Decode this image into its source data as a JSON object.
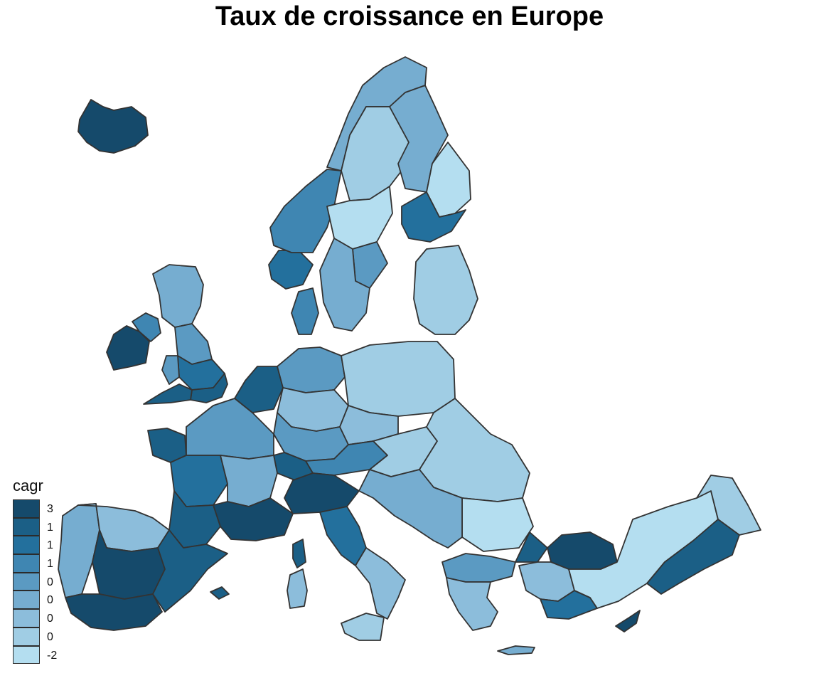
{
  "title": "Taux de croissance en Europe",
  "legend": {
    "title": "cagr",
    "items": [
      {
        "label": "3",
        "color": "#154a6b"
      },
      {
        "label": "1",
        "color": "#1b5f86"
      },
      {
        "label": "1",
        "color": "#23709d"
      },
      {
        "label": "1",
        "color": "#3f86b2"
      },
      {
        "label": "0",
        "color": "#5b9ac2"
      },
      {
        "label": "0",
        "color": "#76add0"
      },
      {
        "label": "0",
        "color": "#8cbddb"
      },
      {
        "label": "0",
        "color": "#a0cde4"
      },
      {
        "label": "-2",
        "color": "#b4def0"
      }
    ]
  },
  "regions": [
    {
      "name": "iceland",
      "cls": 0
    },
    {
      "name": "ireland-west",
      "cls": 0
    },
    {
      "name": "ireland-east",
      "cls": 3
    },
    {
      "name": "uk-scotland",
      "cls": 5
    },
    {
      "name": "uk-north",
      "cls": 4
    },
    {
      "name": "uk-midlands",
      "cls": 2
    },
    {
      "name": "uk-south-east",
      "cls": 1
    },
    {
      "name": "uk-wales",
      "cls": 4
    },
    {
      "name": "uk-south-west",
      "cls": 1
    },
    {
      "name": "norway-south",
      "cls": 2
    },
    {
      "name": "norway-west",
      "cls": 3
    },
    {
      "name": "norway-north",
      "cls": 5
    },
    {
      "name": "sweden-north",
      "cls": 7
    },
    {
      "name": "sweden-middle",
      "cls": 8
    },
    {
      "name": "sweden-east",
      "cls": 4
    },
    {
      "name": "sweden-south",
      "cls": 5
    },
    {
      "name": "finland-north",
      "cls": 5
    },
    {
      "name": "finland-east",
      "cls": 8
    },
    {
      "name": "finland-south",
      "cls": 2
    },
    {
      "name": "baltics",
      "cls": 7
    },
    {
      "name": "denmark",
      "cls": 3
    },
    {
      "name": "benelux",
      "cls": 1
    },
    {
      "name": "germany-north",
      "cls": 4
    },
    {
      "name": "germany-central",
      "cls": 6
    },
    {
      "name": "germany-south",
      "cls": 4
    },
    {
      "name": "poland",
      "cls": 7
    },
    {
      "name": "czechia",
      "cls": 6
    },
    {
      "name": "austria",
      "cls": 3
    },
    {
      "name": "switzerland",
      "cls": 1
    },
    {
      "name": "hungary-slovakia",
      "cls": 7
    },
    {
      "name": "romania",
      "cls": 7
    },
    {
      "name": "bulgaria",
      "cls": 8
    },
    {
      "name": "balkans",
      "cls": 5
    },
    {
      "name": "france-north-west",
      "cls": 1
    },
    {
      "name": "france-north",
      "cls": 4
    },
    {
      "name": "france-west",
      "cls": 2
    },
    {
      "name": "france-east",
      "cls": 5
    },
    {
      "name": "france-south-west",
      "cls": 1
    },
    {
      "name": "france-south-east",
      "cls": 0
    },
    {
      "name": "portugal",
      "cls": 5
    },
    {
      "name": "spain-north",
      "cls": 6
    },
    {
      "name": "spain-centre",
      "cls": 0
    },
    {
      "name": "spain-south",
      "cls": 0
    },
    {
      "name": "spain-east",
      "cls": 1
    },
    {
      "name": "italy-north",
      "cls": 0
    },
    {
      "name": "italy-centre",
      "cls": 2
    },
    {
      "name": "italy-south",
      "cls": 6
    },
    {
      "name": "sicily",
      "cls": 7
    },
    {
      "name": "sardinia",
      "cls": 6
    },
    {
      "name": "corsica",
      "cls": 1
    },
    {
      "name": "balearics",
      "cls": 1
    },
    {
      "name": "greece-north",
      "cls": 4
    },
    {
      "name": "greece-south",
      "cls": 6
    },
    {
      "name": "crete",
      "cls": 5
    },
    {
      "name": "turkey-thrace",
      "cls": 1
    },
    {
      "name": "turkey-north",
      "cls": 0
    },
    {
      "name": "turkey-west",
      "cls": 6
    },
    {
      "name": "turkey-south",
      "cls": 2
    },
    {
      "name": "turkey-central",
      "cls": 8
    },
    {
      "name": "turkey-east",
      "cls": 7
    },
    {
      "name": "turkey-south-east",
      "cls": 1
    },
    {
      "name": "cyprus",
      "cls": 0
    }
  ]
}
